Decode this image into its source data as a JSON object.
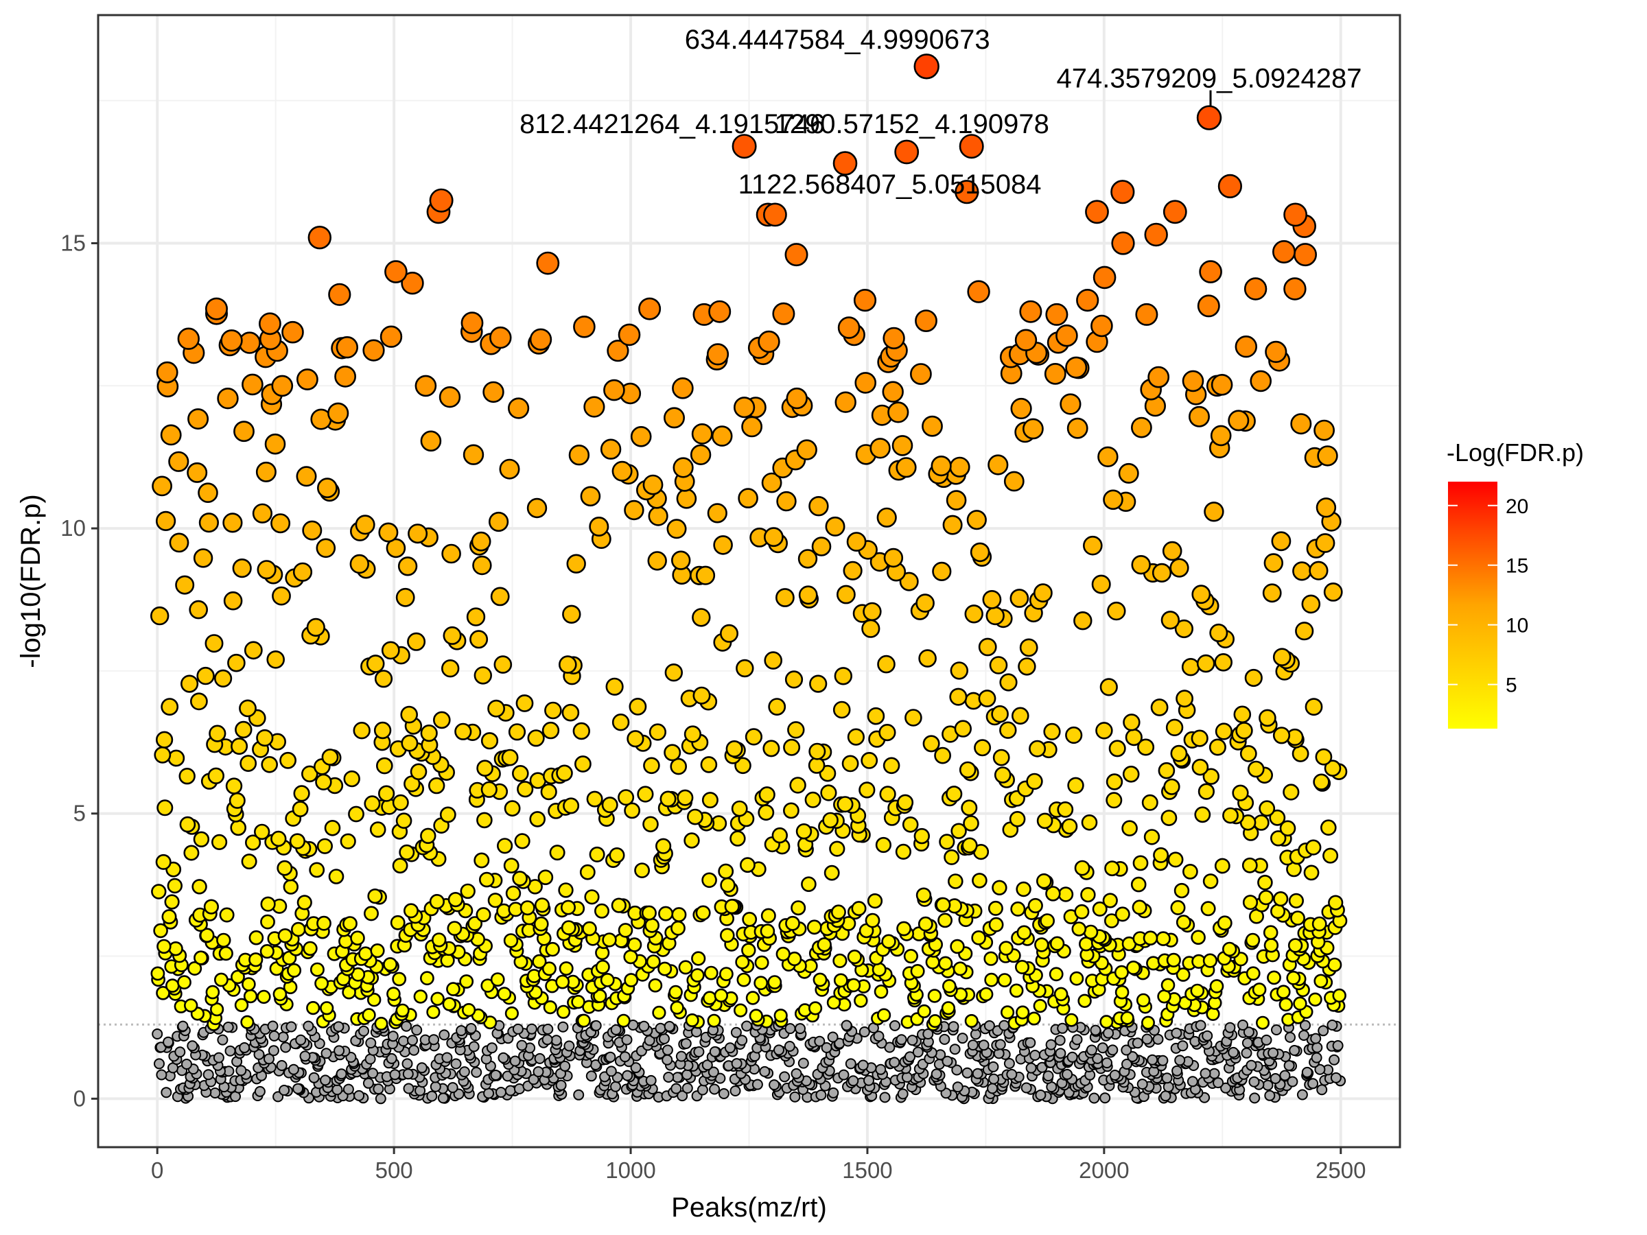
{
  "chart_data": {
    "type": "scatter",
    "title": "",
    "xlabel": "Peaks(mz/rt)",
    "ylabel": "-log10(FDR.p)",
    "xlim": [
      -125,
      2625
    ],
    "ylim": [
      -0.85,
      19
    ],
    "xticks": [
      0,
      500,
      1000,
      1500,
      2000,
      2500
    ],
    "yticks": [
      0,
      5,
      10,
      15
    ],
    "grid": true,
    "significance_threshold": 1.3,
    "threshold_style": "dotted",
    "n_peaks": 2500,
    "nonsignificant_color": "#A9A9A9",
    "legend": {
      "title": "-Log(FDR.p)",
      "placement": "right",
      "ticks": [
        5,
        10,
        15,
        20
      ],
      "range": [
        1.3,
        22
      ],
      "colors": [
        "#FFFF00",
        "#FFA500",
        "#FF4500",
        "#FF0000"
      ]
    },
    "labeled_points": [
      {
        "label": "634.4447584_4.9990673",
        "x": 1625,
        "y": 18.1
      },
      {
        "label": "474.3579209_5.0924287",
        "x": 2222,
        "y": 17.2
      },
      {
        "label": "812.4421264_4.1915746",
        "x": 1240,
        "y": 16.7
      },
      {
        "label": "1290.57152_4.190978",
        "x": 1720,
        "y": 16.7
      },
      {
        "label": "1122.568407_5.0515084",
        "x": 1453,
        "y": 16.4
      },
      {
        "label": "",
        "x": 1583,
        "y": 16.6
      }
    ],
    "notable_points": [
      {
        "x": 600,
        "y": 15.75
      },
      {
        "x": 594,
        "y": 15.55
      },
      {
        "x": 2039,
        "y": 15.9
      },
      {
        "x": 2266,
        "y": 16.0
      },
      {
        "x": 1710,
        "y": 15.9
      },
      {
        "x": 1290,
        "y": 15.5
      },
      {
        "x": 1305,
        "y": 15.5
      },
      {
        "x": 1985,
        "y": 15.55
      },
      {
        "x": 2150,
        "y": 15.55
      },
      {
        "x": 2404,
        "y": 15.5
      },
      {
        "x": 2423,
        "y": 15.3
      },
      {
        "x": 343,
        "y": 15.1
      },
      {
        "x": 2040,
        "y": 15.0
      },
      {
        "x": 2110,
        "y": 15.15
      },
      {
        "x": 1350,
        "y": 14.8
      },
      {
        "x": 2380,
        "y": 14.85
      },
      {
        "x": 2425,
        "y": 14.8
      },
      {
        "x": 825,
        "y": 14.65
      },
      {
        "x": 504,
        "y": 14.5
      },
      {
        "x": 539,
        "y": 14.3
      },
      {
        "x": 2001,
        "y": 14.4
      },
      {
        "x": 2225,
        "y": 14.5
      },
      {
        "x": 385,
        "y": 14.1
      },
      {
        "x": 1735,
        "y": 14.15
      },
      {
        "x": 2320,
        "y": 14.2
      },
      {
        "x": 2403,
        "y": 14.2
      },
      {
        "x": 1495,
        "y": 14.0
      },
      {
        "x": 1965,
        "y": 14.0
      },
      {
        "x": 125,
        "y": 13.85
      },
      {
        "x": 1040,
        "y": 13.85
      },
      {
        "x": 1155,
        "y": 13.75
      },
      {
        "x": 1188,
        "y": 13.8
      },
      {
        "x": 1845,
        "y": 13.8
      },
      {
        "x": 1900,
        "y": 13.75
      },
      {
        "x": 2090,
        "y": 13.75
      },
      {
        "x": 2221,
        "y": 13.9
      },
      {
        "x": 1995,
        "y": 13.55
      }
    ]
  }
}
